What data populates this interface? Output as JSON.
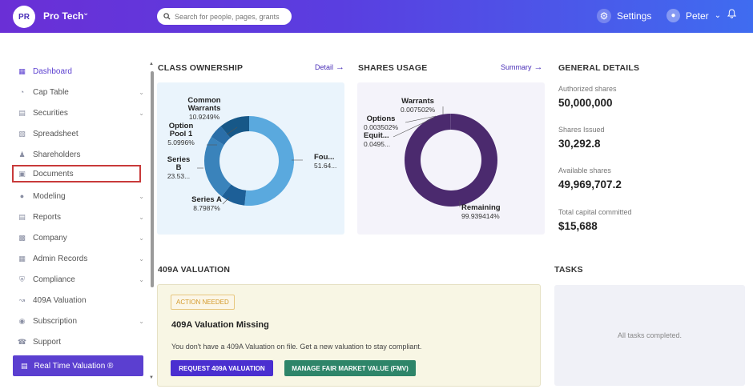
{
  "header": {
    "org_initials": "PR",
    "org_name": "Pro Tech",
    "search_placeholder": "Search for people, pages, grants",
    "settings_label": "Settings",
    "user_name": "Peter"
  },
  "sidebar": {
    "items": [
      {
        "label": "Dashboard",
        "icon": "dashboard-icon"
      },
      {
        "label": "Cap Table",
        "icon": "pie-chart-icon"
      },
      {
        "label": "Securities",
        "icon": "securities-icon"
      },
      {
        "label": "Spreadsheet",
        "icon": "spreadsheet-icon"
      },
      {
        "label": "Shareholders",
        "icon": "person-icon"
      },
      {
        "label": "Documents",
        "icon": "folder-icon"
      },
      {
        "label": "Modeling",
        "icon": "lightbulb-icon"
      },
      {
        "label": "Reports",
        "icon": "reports-icon"
      },
      {
        "label": "Company",
        "icon": "briefcase-icon"
      },
      {
        "label": "Admin Records",
        "icon": "records-icon"
      },
      {
        "label": "Compliance",
        "icon": "shield-icon"
      },
      {
        "label": "409A Valuation",
        "icon": "valuation-icon"
      },
      {
        "label": "Subscription",
        "icon": "subscription-icon"
      },
      {
        "label": "Support",
        "icon": "support-icon"
      }
    ],
    "cta_label": "Real Time Valuation ®"
  },
  "class_ownership": {
    "title": "CLASS OWNERSHIP",
    "link": "Detail",
    "labels": {
      "common": {
        "name": "Common Warrants",
        "pct": "10.9249%"
      },
      "option_pool": {
        "name": "Option Pool 1",
        "pct": "5.0996%"
      },
      "series_b": {
        "name": "Series B",
        "pct": "23.53..."
      },
      "series_a": {
        "name": "Series A",
        "pct": "8.7987%"
      },
      "founders": {
        "name": "Fou...",
        "pct": "51.64..."
      }
    }
  },
  "shares_usage": {
    "title": "SHARES USAGE",
    "link": "Summary",
    "labels": {
      "warrants": {
        "name": "Warrants",
        "pct": "0.007502%"
      },
      "options": {
        "name": "Options",
        "pct": "0.003502%"
      },
      "equity": {
        "name": "Equit...",
        "pct": "0.0495..."
      },
      "remaining": {
        "name": "Remaining",
        "pct": "99.939414%"
      }
    }
  },
  "general_details": {
    "title": "GENERAL DETAILS",
    "authorized_label": "Authorized shares",
    "authorized_value": "50,000,000",
    "issued_label": "Shares Issued",
    "issued_value": "30,292.8",
    "available_label": "Available shares",
    "available_value": "49,969,707.2",
    "capital_label": "Total capital committed",
    "capital_value": "$15,688"
  },
  "valuation": {
    "title": "409A VALUATION",
    "badge": "ACTION NEEDED",
    "card_title": "409A Valuation Missing",
    "description": "You don't have a 409A Valuation on file. Get a new valuation to stay compliant.",
    "primary_button": "REQUEST 409A VALUATION",
    "secondary_button": "MANAGE FAIR MARKET VALUE (FMV)"
  },
  "tasks": {
    "title": "TASKS",
    "empty_text": "All tasks completed."
  },
  "chart_data": [
    {
      "type": "pie",
      "title": "CLASS OWNERSHIP",
      "categories": [
        "Founders",
        "Series A",
        "Series B",
        "Option Pool 1",
        "Common Warrants"
      ],
      "values": [
        51.64,
        8.7987,
        23.53,
        5.0996,
        10.9249
      ],
      "colors": [
        "#5aa9de",
        "#1d5f97",
        "#3a83bb",
        "#2a6ea8",
        "#175888"
      ]
    },
    {
      "type": "pie",
      "title": "SHARES USAGE",
      "categories": [
        "Remaining",
        "Equity",
        "Options",
        "Warrants"
      ],
      "values": [
        99.939414,
        0.0495,
        0.003502,
        0.007502
      ],
      "colors": [
        "#4b2a6e",
        "#6b4a90",
        "#6b4a90",
        "#6b4a90"
      ]
    }
  ]
}
